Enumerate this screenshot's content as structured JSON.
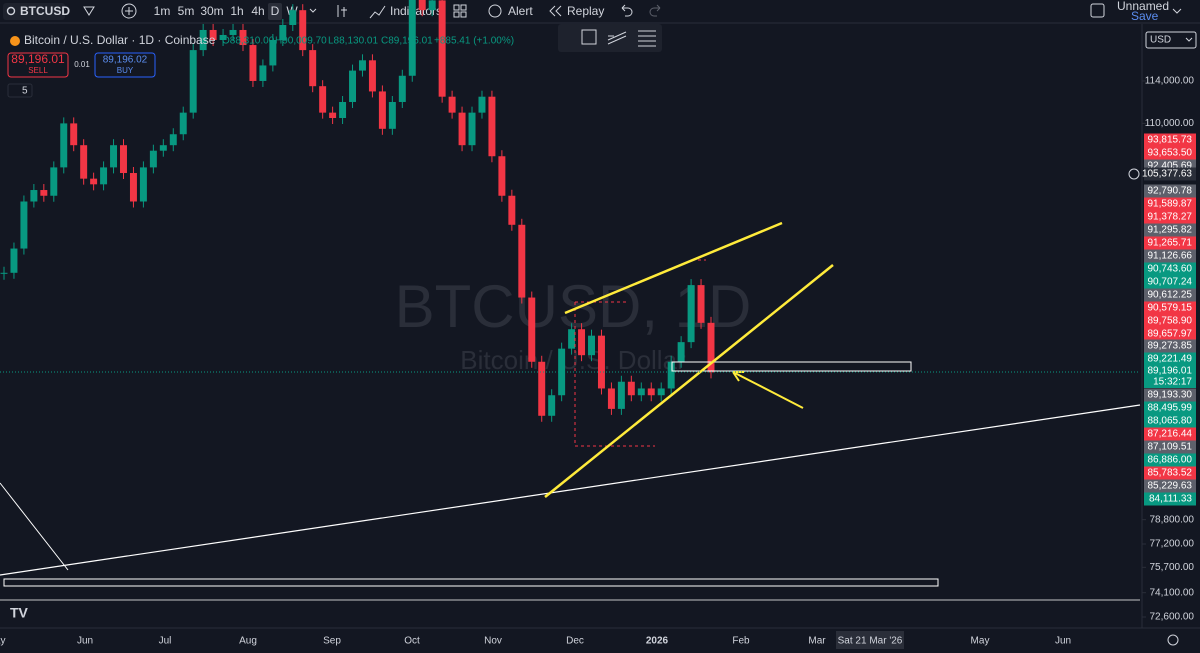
{
  "toolbar": {
    "symbol": "BTCUSD",
    "intervals": [
      "1m",
      "5m",
      "30m",
      "1h",
      "4h",
      "D",
      "W"
    ],
    "indicators": "Indicators",
    "alert": "Alert",
    "replay": "Replay",
    "layout_name": "Unnamed",
    "save": "Save"
  },
  "legend": {
    "title": "Bitcoin / U.S. Dollar · 1D · Coinbase",
    "ohlc": [
      "O88,310.00",
      "H90,009.70",
      "L88,130.01",
      "C89,196.01",
      "+885.41 (+1.00%)"
    ],
    "sell_price": "89,196.01",
    "sell": "SELL",
    "spread": "0.01",
    "buy_price": "89,196.02",
    "buy": "BUY",
    "indicators_count": "5"
  },
  "currency": "USD",
  "watermark": {
    "symbol": "BTCUSD, 1D",
    "name": "Bitcoin / U.S. Dollar"
  },
  "chart_data": {
    "type": "candlestick",
    "log_scale": true,
    "up_color": "#089981",
    "down_color": "#f23645",
    "close": [
      97000,
      99000,
      103000,
      104000,
      103500,
      106000,
      110000,
      108000,
      105000,
      104500,
      106000,
      108000,
      105500,
      103000,
      106000,
      107500,
      108000,
      109000,
      111000,
      117000,
      119000,
      118000,
      118500,
      119000,
      117500,
      114000,
      115500,
      118000,
      119500,
      121000,
      117000,
      113500,
      111000,
      110500,
      112000,
      115000,
      116000,
      113000,
      109500,
      112000,
      114500,
      123000,
      121000,
      122000,
      112500,
      111000,
      108000,
      111000,
      112500,
      107000,
      103500,
      101000,
      95000,
      90000,
      86000,
      87500,
      91000,
      92500,
      90500,
      92000,
      88000,
      86500,
      88500,
      87500,
      88000,
      87500,
      88000,
      90000,
      91500,
      96000,
      93000,
      89196
    ],
    "ylim": [
      71930,
      119600
    ],
    "yticks": [
      {
        "value": 114000,
        "label": "114,000.00"
      },
      {
        "value": 110000,
        "label": "110,000.00"
      },
      {
        "value": 78800,
        "label": "78,800.00"
      },
      {
        "value": 77200,
        "label": "77,200.00"
      },
      {
        "value": 75700,
        "label": "75,700.00"
      },
      {
        "value": 74100,
        "label": "74,100.00"
      },
      {
        "value": 72600,
        "label": "72,600.00"
      }
    ],
    "xticks": [
      "May",
      "Jun",
      "Jul",
      "Aug",
      "Sep",
      "Oct",
      "Nov",
      "Dec",
      "2026",
      "Feb",
      "Mar",
      "Sat 21 Mar '26",
      "May",
      "Jun"
    ],
    "price_labels": [
      {
        "label": "93,815.73",
        "color": "#f23645"
      },
      {
        "label": "93,653.50",
        "color": "#f23645"
      },
      {
        "label": "92,405.69",
        "color": "#5d606b"
      },
      {
        "label": "105,377.63",
        "color": "#2a2e39"
      },
      {
        "label": "92,790.78",
        "color": "#5d606b"
      },
      {
        "label": "91,589.87",
        "color": "#f23645"
      },
      {
        "label": "91,378.27",
        "color": "#f23645"
      },
      {
        "label": "91,295.82",
        "color": "#5d606b"
      },
      {
        "label": "91,265.71",
        "color": "#f23645"
      },
      {
        "label": "91,126.66",
        "color": "#5d606b"
      },
      {
        "label": "90,743.60",
        "color": "#089981"
      },
      {
        "label": "90,707.24",
        "color": "#089981"
      },
      {
        "label": "90,612.25",
        "color": "#5d606b"
      },
      {
        "label": "90,579.15",
        "color": "#f23645"
      },
      {
        "label": "89,758.90",
        "color": "#f23645"
      },
      {
        "label": "89,657.97",
        "color": "#f23645"
      },
      {
        "label": "89,273.85",
        "color": "#5d606b"
      },
      {
        "label": "89,221.49",
        "color": "#089981"
      },
      {
        "label": "89,193.30",
        "color": "#5d606b"
      },
      {
        "label": "88,495.99",
        "color": "#089981"
      },
      {
        "label": "88,065.80",
        "color": "#089981"
      },
      {
        "label": "87,216.44",
        "color": "#f23645"
      },
      {
        "label": "87,109.51",
        "color": "#5d606b"
      },
      {
        "label": "86,886.00",
        "color": "#089981"
      },
      {
        "label": "85,783.52",
        "color": "#f23645"
      },
      {
        "label": "85,229.63",
        "color": "#5d606b"
      },
      {
        "label": "84,111.33",
        "color": "#089981"
      }
    ],
    "last_price": {
      "label": "89,196.01",
      "countdown": "15:32:17",
      "color": "#089981"
    }
  }
}
